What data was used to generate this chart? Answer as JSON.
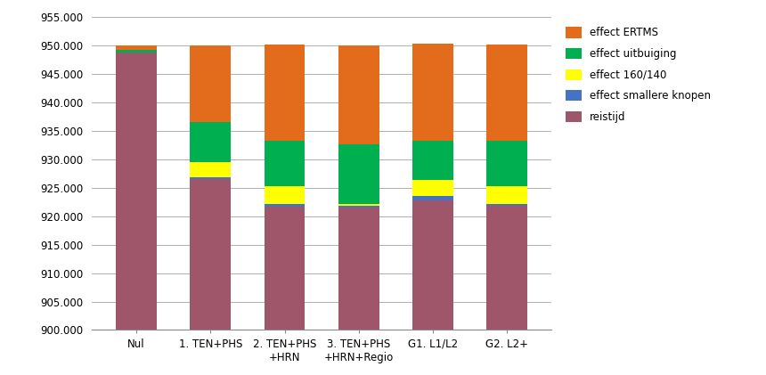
{
  "categories": [
    "Nul",
    "1. TEN+PHS",
    "2. TEN+PHS\n+HRN",
    "3. TEN+PHS\n+HRN+Regio",
    "G1. L1/L2",
    "G2. L2+"
  ],
  "reistijd": [
    948700,
    926500,
    921700,
    921500,
    922800,
    921800
  ],
  "effect_smallere": [
    0,
    300,
    500,
    400,
    700,
    400
  ],
  "effect_160_140": [
    0,
    2700,
    3000,
    300,
    2800,
    3000
  ],
  "effect_uitbuiging": [
    500,
    7000,
    8000,
    10500,
    7000,
    8000
  ],
  "effect_ERTMS": [
    800,
    13500,
    17000,
    17300,
    17000,
    17000
  ],
  "color_reistijd": "#a0566a",
  "color_smallere": "#4472c4",
  "color_160_140": "#ffff00",
  "color_uitbuiging": "#00b050",
  "color_ERTMS": "#e36b1c",
  "ylim_min": 900000,
  "ylim_max": 956000,
  "ytick_step": 5000,
  "legend_labels": [
    "effect ERTMS",
    "effect uitbuiging",
    "effect 160/140",
    "effect smallere knopen",
    "reistijd"
  ],
  "background_color": "#ffffff",
  "grid_color": "#b0b0b0"
}
